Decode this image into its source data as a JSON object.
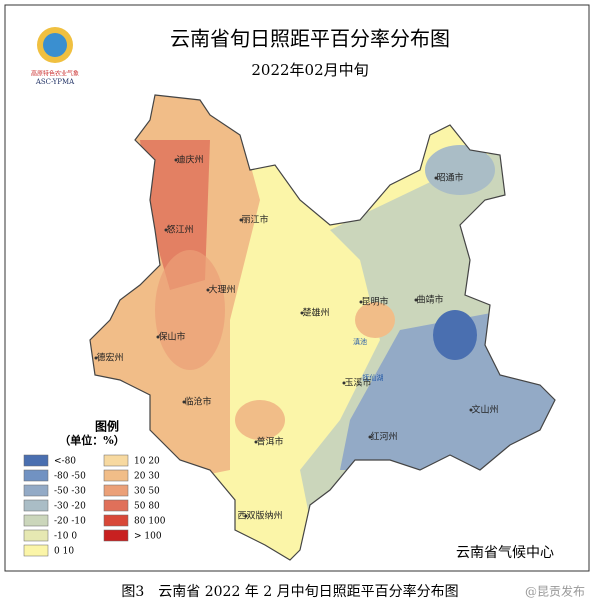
{
  "header": {
    "title": "云南省旬日照距平百分率分布图",
    "subtitle": "2022年02月中旬"
  },
  "logo": {
    "text": "高原特色农业气象",
    "abbr": "ASC-YPMA"
  },
  "legend": {
    "title": "图例",
    "unit": "（单位：%）",
    "items": [
      {
        "label": "<-80",
        "color": "#4a6fb0"
      },
      {
        "label": "-80   -50",
        "color": "#7192c2"
      },
      {
        "label": "-50   -30",
        "color": "#93aac6"
      },
      {
        "label": "-30   -20",
        "color": "#aabdc6"
      },
      {
        "label": "-20   -10",
        "color": "#cbd6bb"
      },
      {
        "label": "-10   0",
        "color": "#e6e8b2"
      },
      {
        "label": "0   10",
        "color": "#fbf5a8"
      },
      {
        "label": "10   20",
        "color": "#f7d9a0"
      },
      {
        "label": "20   30",
        "color": "#f1bd88"
      },
      {
        "label": "30   50",
        "color": "#eba078"
      },
      {
        "label": "50   80",
        "color": "#e0705a"
      },
      {
        "label": "80   100",
        "color": "#d84838"
      },
      {
        "label": "> 100",
        "color": "#c82020"
      }
    ]
  },
  "places": [
    "迪庆州",
    "丽江市",
    "怒江州",
    "大理州",
    "保山市",
    "楚雄州",
    "昆明市",
    "曲靖市",
    "昭通市",
    "德宏州",
    "临沧市",
    "玉溪市",
    "红河州",
    "文山州",
    "普洱市",
    "西双版纳州",
    "滇池",
    "抚仙湖"
  ],
  "credit": "云南省气候中心",
  "caption": "图3　云南省 2022 年 2 月中旬日照距平百分率分布图",
  "watermark": "@昆贡发布"
}
